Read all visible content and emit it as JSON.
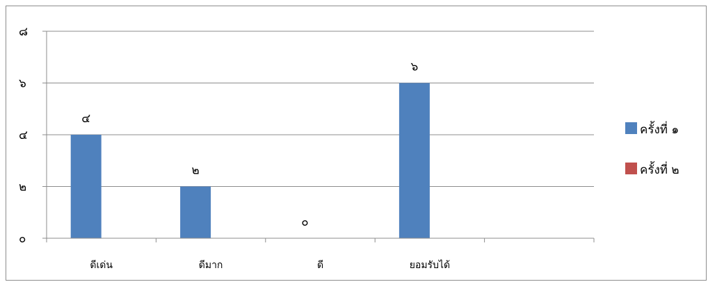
{
  "chart_data": {
    "type": "bar",
    "title": "",
    "xlabel": "",
    "ylabel": "",
    "categories": [
      "ดีเด่น",
      "ดีมาก",
      "ดี",
      "ยอมรับได้",
      ""
    ],
    "series": [
      {
        "name": "ครั้งที่ ๑",
        "color": "#4f81bd",
        "values": [
          4,
          2,
          0,
          6,
          null
        ]
      },
      {
        "name": "ครั้งที่ ๒",
        "color": "#c0504d",
        "values": [
          null,
          null,
          null,
          null,
          null
        ]
      }
    ],
    "data_labels": [
      "๔",
      "๒",
      "๐",
      "๖",
      ""
    ],
    "ylim": [
      0,
      8
    ],
    "yticks": [
      0,
      2,
      4,
      6,
      8
    ],
    "ytick_labels": [
      "๐",
      "๒",
      "๔",
      "๖",
      "๘"
    ],
    "grid": true,
    "legend_position": "right"
  }
}
